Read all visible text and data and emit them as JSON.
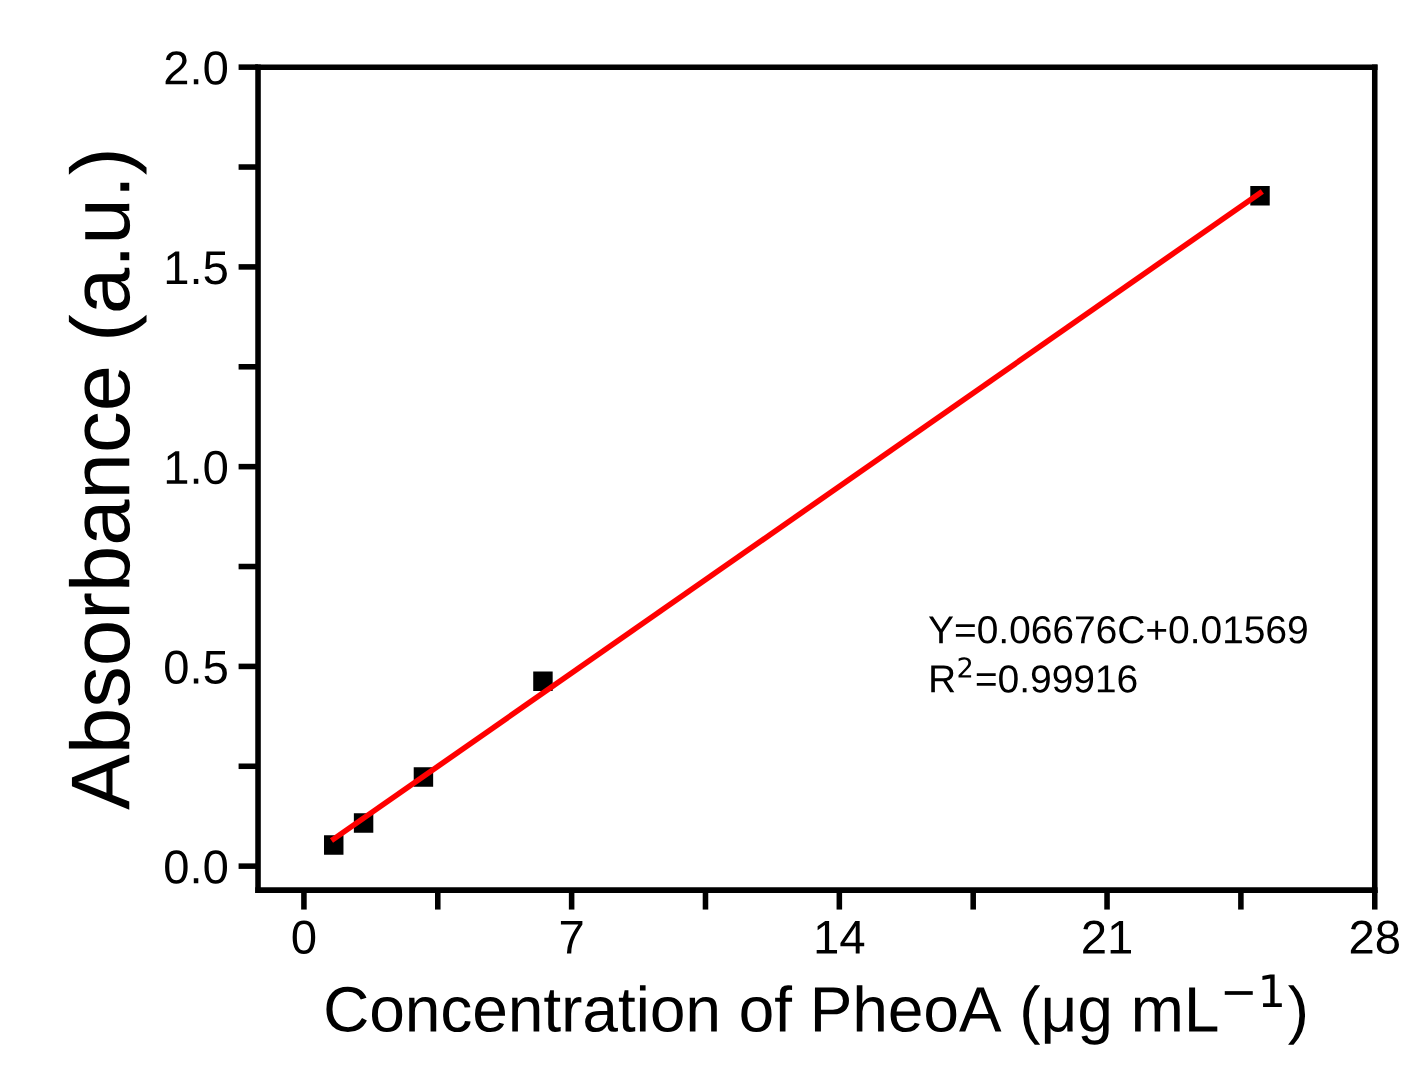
{
  "chart_data": {
    "type": "scatter",
    "xlabel": "Concentration of PheoA (μg mL$^{−1}$)",
    "ylabel": "Absorbance (a.u.)",
    "xlim": [
      -1.2,
      28
    ],
    "ylim": [
      -0.06,
      2.0
    ],
    "xticks": [
      0,
      {
        "value": 3.5,
        "label": null
      },
      7,
      {
        "value": 10.5,
        "label": null
      },
      14,
      {
        "value": 17.5,
        "label": null
      },
      21,
      {
        "value": 24.5,
        "label": null
      },
      28
    ],
    "yticks": [
      "0.0",
      {
        "value": 0.25,
        "label": null
      },
      {
        "value": 0.5,
        "label": "0.5"
      },
      {
        "value": 0.75,
        "label": null
      },
      {
        "value": 1.0,
        "label": "1.0"
      },
      {
        "value": 1.25,
        "label": null
      },
      {
        "value": 1.5,
        "label": "1.5"
      },
      {
        "value": 1.75,
        "label": null
      },
      {
        "value": 2.0,
        "label": "2.0"
      }
    ],
    "grid": false,
    "legend": false,
    "series": [
      {
        "marker": "square",
        "color": "#000000",
        "x": [
          0.78,
          1.56,
          3.125,
          6.25,
          25
        ],
        "values": [
          0.053,
          0.108,
          0.223,
          0.463,
          1.678
        ]
      },
      {
        "type": "line",
        "marker": "none",
        "color": "#ff0000",
        "x": [
          0.78,
          25
        ],
        "values": [
          0.068,
          1.685
        ]
      }
    ],
    "annotations": [
      "Y=0.06676C+0.01569",
      "R$^{2}$=0.99916"
    ]
  }
}
